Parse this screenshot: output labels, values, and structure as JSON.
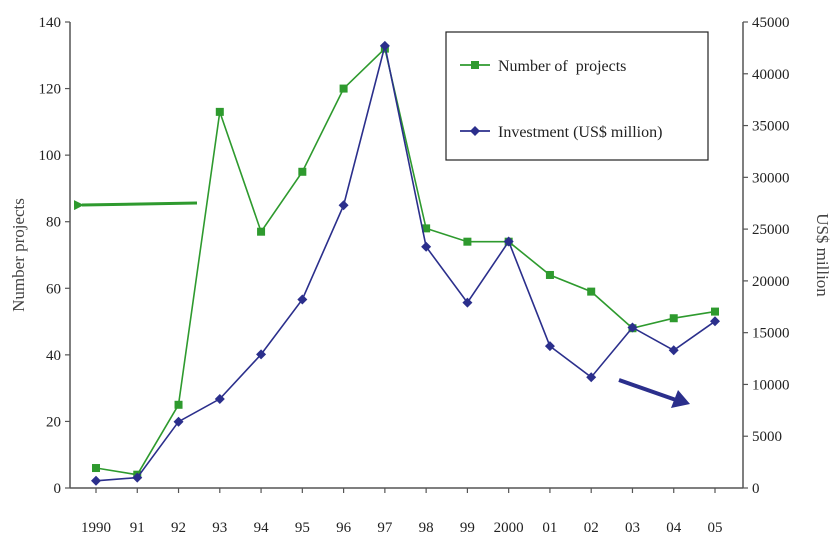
{
  "chart_data": {
    "type": "line",
    "title": "",
    "xlabel": "",
    "categories": [
      "1990",
      "91",
      "92",
      "93",
      "94",
      "95",
      "96",
      "97",
      "98",
      "99",
      "2000",
      "01",
      "02",
      "03",
      "04",
      "05"
    ],
    "y_left": {
      "label": "Number projects",
      "range": [
        0,
        140
      ],
      "ticks": [
        "0",
        "20",
        "40",
        "60",
        "80",
        "100",
        "120",
        "140"
      ]
    },
    "y_right": {
      "label": "US$ million",
      "range": [
        0,
        45000
      ],
      "ticks": [
        "0",
        "5000",
        "10000",
        "15000",
        "20000",
        "25000",
        "30000",
        "35000",
        "40000",
        "45000"
      ]
    },
    "grid": false,
    "legend_position": "top-right",
    "series": [
      {
        "name": "Number of  projects",
        "axis": "left",
        "color": "#2e9a2e",
        "marker": "square",
        "values": [
          6,
          4,
          25,
          113,
          77,
          95,
          120,
          132,
          78,
          74,
          74,
          64,
          59,
          48,
          51,
          53
        ]
      },
      {
        "name": "Investment (US$ million)",
        "axis": "right",
        "color": "#2b2f8c",
        "marker": "diamond",
        "values": [
          700,
          1000,
          6400,
          8600,
          12900,
          18200,
          27300,
          42700,
          23300,
          17900,
          23800,
          13700,
          10700,
          15500,
          13300,
          16100
        ]
      }
    ],
    "annotations": [
      {
        "type": "arrow",
        "meaning": "points to left axis",
        "color": "#2e9a2e"
      },
      {
        "type": "arrow",
        "meaning": "points to right axis",
        "color": "#2b2f8c"
      }
    ]
  }
}
